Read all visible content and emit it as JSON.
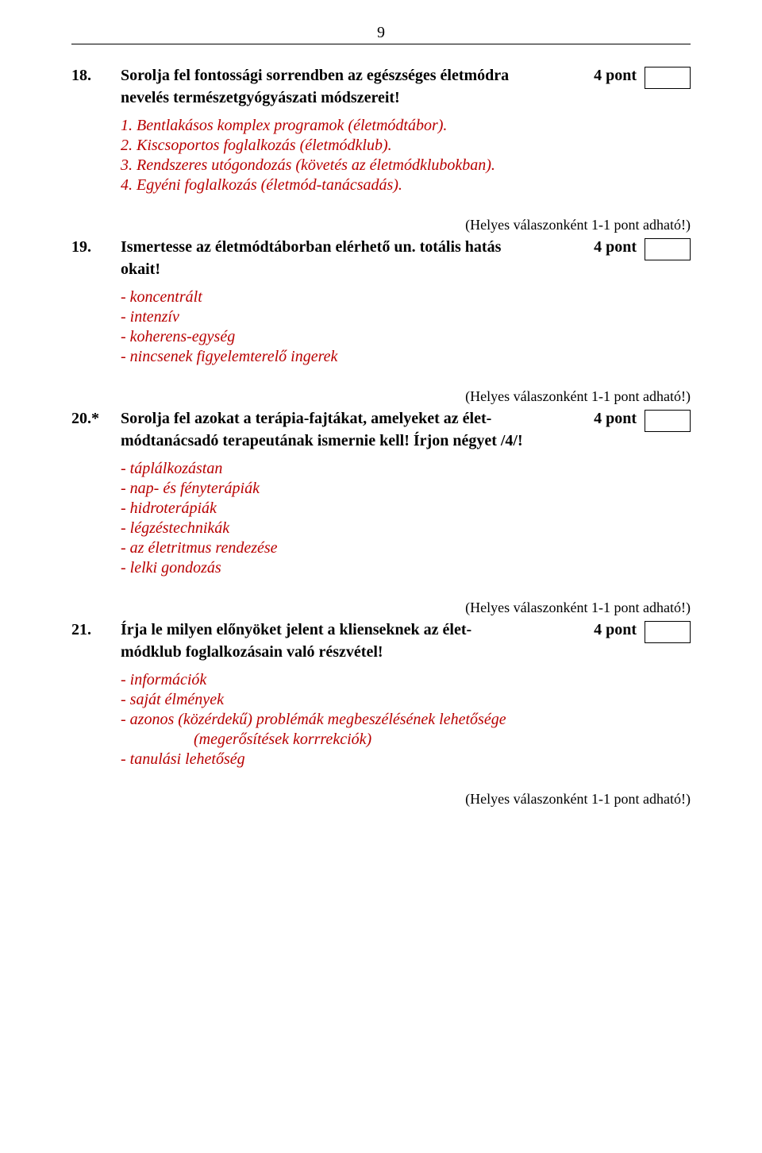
{
  "page_number": "9",
  "note": "(Helyes válaszonként 1-1 pont adható!)",
  "questions": [
    {
      "num": "18.",
      "title_line1": "Sorolja fel fontossági sorrendben az egészséges életmódra",
      "title_line2": "nevelés természetgyógyászati módszereit!",
      "points": "4 pont",
      "answers": [
        "1. Bentlakásos komplex programok (életmódtábor).",
        "2. Kiscsoportos foglalkozás (életmódklub).",
        "3. Rendszeres utógondozás (követés az életmódklubokban).",
        "4. Egyéni foglalkozás (életmód-tanácsadás)."
      ]
    },
    {
      "num": "19.",
      "title_line1": "Ismertesse az életmódtáborban elérhető un. totális hatás",
      "title_line2": "okait!",
      "points": "4 pont",
      "answers": [
        "- koncentrált",
        "- intenzív",
        "- koherens-egység",
        "- nincsenek figyelemterelő ingerek"
      ]
    },
    {
      "num": "20.*",
      "title_line1": "Sorolja fel azokat a terápia-fajtákat, amelyeket az élet-",
      "title_line2": "módtanácsadó terapeutának ismernie kell! Írjon négyet /4/!",
      "points": "4 pont",
      "answers": [
        "- táplálkozástan",
        "- nap- és fényterápiák",
        "- hidroterápiák",
        "- légzéstechnikák",
        "- az életritmus rendezése",
        "- lelki gondozás"
      ]
    },
    {
      "num": "21.",
      "title_line1": "Írja le milyen előnyöket jelent a klienseknek az élet-",
      "title_line2": "módklub foglalkozásain való részvétel!",
      "points": "4 pont",
      "answers": [
        "- információk",
        "- saját élmények",
        "- azonos (közérdekű) problémák megbeszélésének lehetősége",
        "  (megerősítések korrrekciók)",
        "- tanulási lehetőség"
      ],
      "paren_indent": true
    }
  ]
}
